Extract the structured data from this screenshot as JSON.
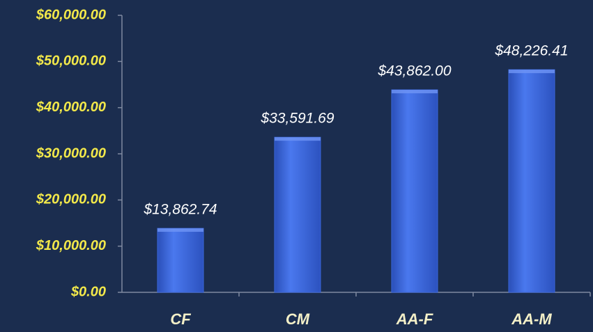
{
  "chart_data": {
    "type": "bar",
    "categories": [
      "CF",
      "CM",
      "AA-F",
      "AA-M"
    ],
    "values": [
      13862.74,
      33591.69,
      43862.0,
      48226.41
    ],
    "value_labels": [
      "$13,862.74",
      "$33,591.69",
      "$43,862.00",
      "$48,226.41"
    ],
    "color": "#3a66dc",
    "ylim": [
      0,
      60000
    ],
    "yticks": [
      {
        "value": 0,
        "label": "$0.00"
      },
      {
        "value": 10000,
        "label": "$10,000.00"
      },
      {
        "value": 20000,
        "label": "$20,000.00"
      },
      {
        "value": 30000,
        "label": "$30,000.00"
      },
      {
        "value": 40000,
        "label": "$40,000.00"
      },
      {
        "value": 50000,
        "label": "$50,000.00"
      },
      {
        "value": 60000,
        "label": "$60,000.00"
      }
    ]
  }
}
